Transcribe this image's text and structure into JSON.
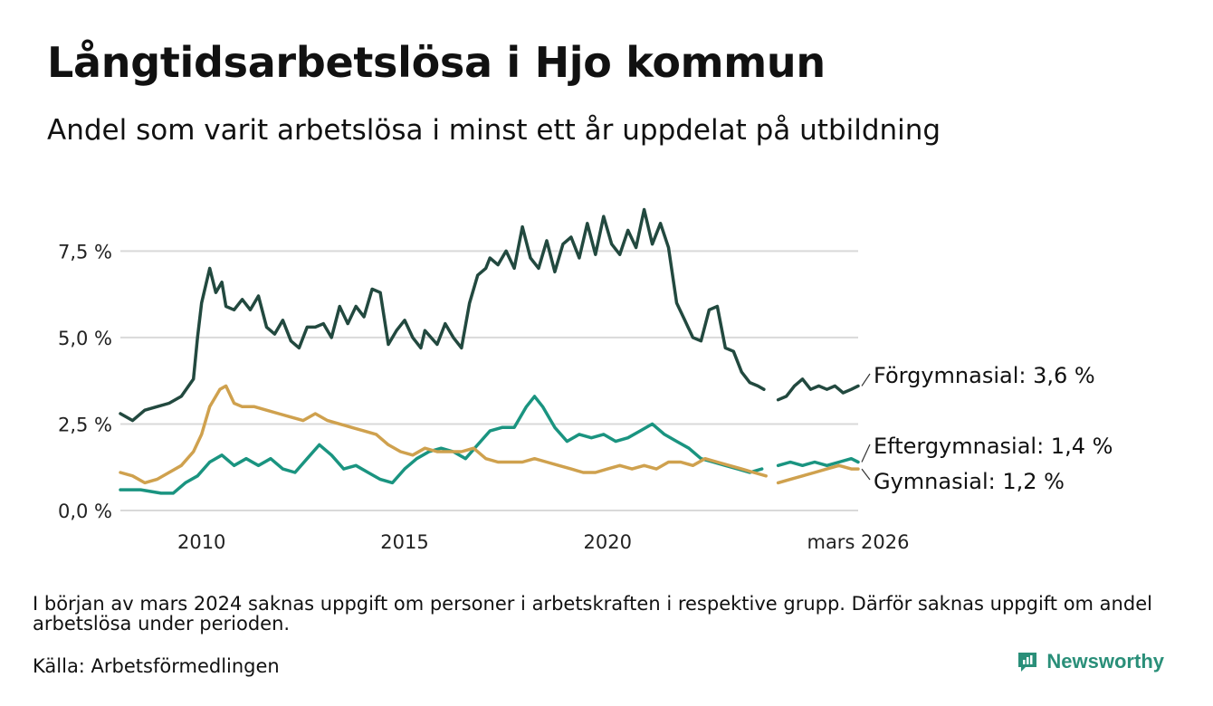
{
  "title": "Långtidsarbetslösa i Hjo kommun",
  "subtitle": "Andel som varit arbetslösa i minst ett år uppdelat på utbildning",
  "note": "I början av mars 2024 saknas uppgift om personer i arbetskraften i respektive grupp. Därför saknas uppgift om andel arbetslösa under perioden.",
  "source": "Källa: Arbetsförmedlingen",
  "brand": {
    "name": "Newsworthy",
    "icon": "newsworthy-logo-icon"
  },
  "colors": {
    "forgymnasial": "#22493f",
    "eftergymnasial": "#1a9480",
    "gymnasial": "#cfa14e",
    "grid": "#d9d9d9"
  },
  "chart_data": {
    "type": "line",
    "title": "Långtidsarbetslösa i Hjo kommun",
    "xlabel": "",
    "ylabel": "",
    "xlim": [
      2008.0,
      2026.17
    ],
    "ylim": [
      0,
      9
    ],
    "y_ticks": [
      0,
      2.5,
      5,
      7.5
    ],
    "y_tick_labels": [
      "0,0 %",
      "2,5 %",
      "5,0 %",
      "7,5 %"
    ],
    "x_ticks": [
      2010,
      2015,
      2020,
      2026.17
    ],
    "x_tick_labels": [
      "2010",
      "2015",
      "2020",
      "mars 2026"
    ],
    "gap": [
      2024.0,
      2024.2
    ],
    "series": [
      {
        "name": "Förgymnasial",
        "end_label": "Förgymnasial: 3,6 %",
        "color": "#22493f",
        "x": [
          2008.0,
          2008.3,
          2008.6,
          2008.9,
          2009.2,
          2009.5,
          2009.8,
          2009.9,
          2010.0,
          2010.2,
          2010.35,
          2010.5,
          2010.6,
          2010.8,
          2011.0,
          2011.2,
          2011.4,
          2011.6,
          2011.8,
          2012.0,
          2012.2,
          2012.4,
          2012.6,
          2012.8,
          2013.0,
          2013.2,
          2013.4,
          2013.6,
          2013.8,
          2014.0,
          2014.2,
          2014.4,
          2014.6,
          2014.8,
          2015.0,
          2015.2,
          2015.4,
          2015.5,
          2015.8,
          2016.0,
          2016.2,
          2016.4,
          2016.6,
          2016.8,
          2017.0,
          2017.1,
          2017.3,
          2017.5,
          2017.7,
          2017.9,
          2018.1,
          2018.3,
          2018.5,
          2018.7,
          2018.9,
          2019.1,
          2019.3,
          2019.5,
          2019.7,
          2019.9,
          2020.1,
          2020.3,
          2020.5,
          2020.7,
          2020.9,
          2021.1,
          2021.3,
          2021.5,
          2021.7,
          2021.9,
          2022.1,
          2022.3,
          2022.5,
          2022.7,
          2022.9,
          2023.1,
          2023.3,
          2023.5,
          2023.7,
          2023.85,
          2024.0,
          2024.2,
          2024.4,
          2024.6,
          2024.8,
          2025.0,
          2025.2,
          2025.4,
          2025.6,
          2025.8,
          2026.0,
          2026.17
        ],
        "values": [
          2.8,
          2.6,
          2.9,
          3.0,
          3.1,
          3.3,
          3.8,
          5.0,
          6.0,
          7.0,
          6.3,
          6.6,
          5.9,
          5.8,
          6.1,
          5.8,
          6.2,
          5.3,
          5.1,
          5.5,
          4.9,
          4.7,
          5.3,
          5.3,
          5.4,
          5.0,
          5.9,
          5.4,
          5.9,
          5.6,
          6.4,
          6.3,
          4.8,
          5.2,
          5.5,
          5.0,
          4.7,
          5.2,
          4.8,
          5.4,
          5.0,
          4.7,
          6.0,
          6.8,
          7.0,
          7.3,
          7.1,
          7.5,
          7.0,
          8.2,
          7.3,
          7.0,
          7.8,
          6.9,
          7.7,
          7.9,
          7.3,
          8.3,
          7.4,
          8.5,
          7.7,
          7.4,
          8.1,
          7.6,
          8.7,
          7.7,
          8.3,
          7.6,
          6.0,
          5.5,
          5.0,
          4.9,
          5.8,
          5.9,
          4.7,
          4.6,
          4.0,
          3.7,
          3.6,
          3.5,
          null,
          3.2,
          3.3,
          3.6,
          3.8,
          3.5,
          3.6,
          3.5,
          3.6,
          3.4,
          3.5,
          3.6
        ]
      },
      {
        "name": "Eftergymnasial",
        "end_label": "Eftergymnasial: 1,4 %",
        "color": "#1a9480",
        "x": [
          2008.0,
          2008.5,
          2009.0,
          2009.3,
          2009.6,
          2009.9,
          2010.2,
          2010.5,
          2010.8,
          2011.1,
          2011.4,
          2011.7,
          2012.0,
          2012.3,
          2012.6,
          2012.9,
          2013.2,
          2013.5,
          2013.8,
          2014.1,
          2014.4,
          2014.7,
          2015.0,
          2015.3,
          2015.6,
          2015.9,
          2016.2,
          2016.5,
          2016.8,
          2017.1,
          2017.4,
          2017.7,
          2018.0,
          2018.2,
          2018.4,
          2018.7,
          2019.0,
          2019.3,
          2019.6,
          2019.9,
          2020.2,
          2020.5,
          2020.8,
          2021.1,
          2021.4,
          2021.7,
          2022.0,
          2022.3,
          2022.6,
          2022.9,
          2023.2,
          2023.5,
          2023.8,
          2024.0,
          2024.2,
          2024.5,
          2024.8,
          2025.1,
          2025.4,
          2025.7,
          2026.0,
          2026.17
        ],
        "values": [
          0.6,
          0.6,
          0.5,
          0.5,
          0.8,
          1.0,
          1.4,
          1.6,
          1.3,
          1.5,
          1.3,
          1.5,
          1.2,
          1.1,
          1.5,
          1.9,
          1.6,
          1.2,
          1.3,
          1.1,
          0.9,
          0.8,
          1.2,
          1.5,
          1.7,
          1.8,
          1.7,
          1.5,
          1.9,
          2.3,
          2.4,
          2.4,
          3.0,
          3.3,
          3.0,
          2.4,
          2.0,
          2.2,
          2.1,
          2.2,
          2.0,
          2.1,
          2.3,
          2.5,
          2.2,
          2.0,
          1.8,
          1.5,
          1.4,
          1.3,
          1.2,
          1.1,
          1.2,
          null,
          1.3,
          1.4,
          1.3,
          1.4,
          1.3,
          1.4,
          1.5,
          1.4
        ]
      },
      {
        "name": "Gymnasial",
        "end_label": "Gymnasial: 1,2 %",
        "color": "#cfa14e",
        "x": [
          2008.0,
          2008.3,
          2008.6,
          2008.9,
          2009.2,
          2009.5,
          2009.8,
          2010.0,
          2010.2,
          2010.45,
          2010.6,
          2010.8,
          2011.0,
          2011.3,
          2011.6,
          2011.9,
          2012.2,
          2012.5,
          2012.8,
          2013.1,
          2013.4,
          2013.7,
          2014.0,
          2014.3,
          2014.6,
          2014.9,
          2015.2,
          2015.5,
          2015.8,
          2016.1,
          2016.4,
          2016.7,
          2017.0,
          2017.3,
          2017.6,
          2017.9,
          2018.2,
          2018.5,
          2018.8,
          2019.1,
          2019.4,
          2019.7,
          2020.0,
          2020.3,
          2020.6,
          2020.9,
          2021.2,
          2021.5,
          2021.8,
          2022.1,
          2022.4,
          2022.7,
          2023.0,
          2023.3,
          2023.6,
          2023.9,
          2024.0,
          2024.2,
          2024.5,
          2024.8,
          2025.1,
          2025.4,
          2025.7,
          2026.0,
          2026.17
        ],
        "values": [
          1.1,
          1.0,
          0.8,
          0.9,
          1.1,
          1.3,
          1.7,
          2.2,
          3.0,
          3.5,
          3.6,
          3.1,
          3.0,
          3.0,
          2.9,
          2.8,
          2.7,
          2.6,
          2.8,
          2.6,
          2.5,
          2.4,
          2.3,
          2.2,
          1.9,
          1.7,
          1.6,
          1.8,
          1.7,
          1.7,
          1.7,
          1.8,
          1.5,
          1.4,
          1.4,
          1.4,
          1.5,
          1.4,
          1.3,
          1.2,
          1.1,
          1.1,
          1.2,
          1.3,
          1.2,
          1.3,
          1.2,
          1.4,
          1.4,
          1.3,
          1.5,
          1.4,
          1.3,
          1.2,
          1.1,
          1.0,
          null,
          0.8,
          0.9,
          1.0,
          1.1,
          1.2,
          1.3,
          1.2,
          1.2
        ]
      }
    ]
  }
}
